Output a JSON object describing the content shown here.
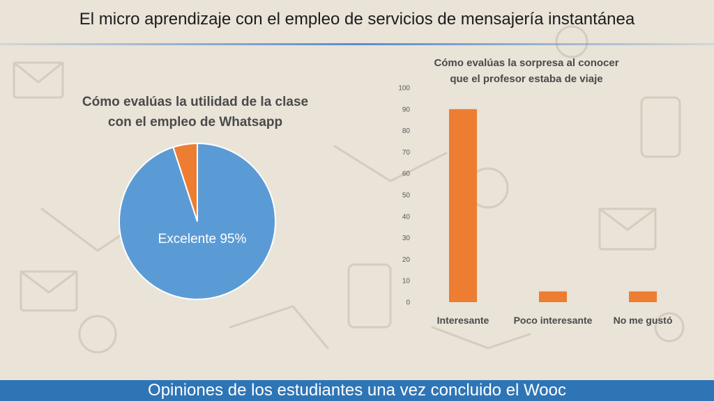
{
  "slide": {
    "title": "El micro aprendizaje con el empleo de servicios de mensajería instantánea",
    "footer": "Opiniones de los estudiantes una vez concluido el Wooc"
  },
  "colors": {
    "pie_main": "#5b9bd5",
    "accent": "#ed7d31",
    "footer_bg": "#2e75b6"
  },
  "chart_data": [
    {
      "type": "pie",
      "title": "Cómo evalúas la utilidad de la clase con el empleo de Whatsapp",
      "title_lines": [
        "Cómo evalúas la utilidad de la clase",
        "con el empleo de Whatsapp"
      ],
      "slices": [
        {
          "label": "Excelente",
          "value": 95,
          "color": "#5b9bd5",
          "data_label": "Excelente 95%"
        },
        {
          "label": "",
          "value": 5,
          "color": "#ed7d31",
          "data_label": ""
        }
      ]
    },
    {
      "type": "bar",
      "title": "Cómo evalúas la sorpresa al conocer que el profesor estaba de viaje",
      "title_lines": [
        "Cómo evalúas la sorpresa al conocer",
        "que el profesor estaba de viaje"
      ],
      "categories": [
        "Interesante",
        "Poco interesante",
        "No me gustó"
      ],
      "values": [
        90,
        5,
        5
      ],
      "color": "#ed7d31",
      "ylim": [
        0,
        100
      ],
      "yticks": [
        0,
        10,
        20,
        30,
        40,
        50,
        60,
        70,
        80,
        90,
        100
      ],
      "grid": false
    }
  ]
}
